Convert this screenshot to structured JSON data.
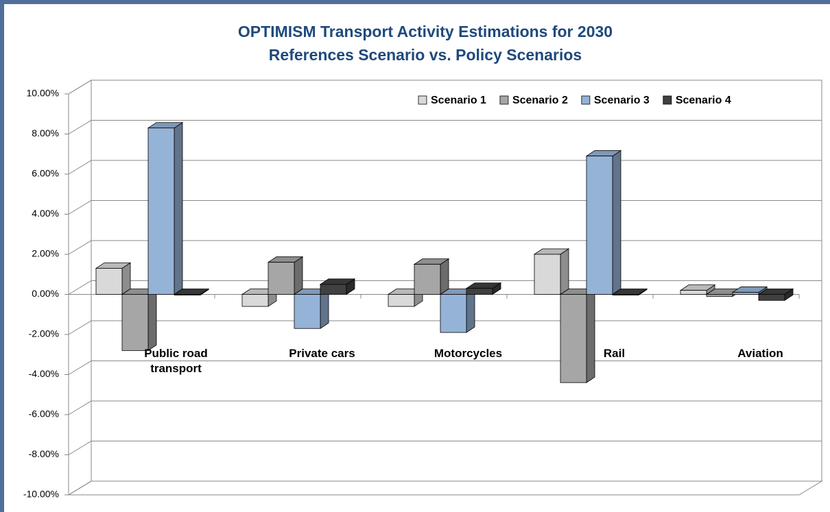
{
  "chart_data": {
    "type": "bar3d",
    "title": "OPTIMISM Transport Activity Estimations for  2030",
    "subtitle": "References Scenario vs. Policy Scenarios",
    "categories": [
      "Public road transport",
      "Private cars",
      "Motorcycles",
      "Rail",
      "Aviation"
    ],
    "series": [
      {
        "name": "Scenario 1",
        "color": "#d9d9d9",
        "values": [
          1.3,
          -0.6,
          -0.6,
          2.0,
          0.2
        ]
      },
      {
        "name": "Scenario 2",
        "color": "#a6a6a6",
        "values": [
          -2.8,
          1.6,
          1.5,
          -4.4,
          -0.1
        ]
      },
      {
        "name": "Scenario 3",
        "color": "#95b3d7",
        "values": [
          8.3,
          -1.7,
          -1.9,
          6.9,
          0.1
        ]
      },
      {
        "name": "Scenario 4",
        "color": "#404040",
        "values": [
          0.0,
          0.5,
          0.3,
          0.0,
          -0.3
        ]
      }
    ],
    "ylim": [
      -10,
      10
    ],
    "yticks": [
      {
        "value": -10,
        "label": "-10.00%"
      },
      {
        "value": -8,
        "label": "-8.00%"
      },
      {
        "value": -6,
        "label": "-6.00%"
      },
      {
        "value": -4,
        "label": "-4.00%"
      },
      {
        "value": -2,
        "label": "-2.00%"
      },
      {
        "value": 0,
        "label": "0.00%"
      },
      {
        "value": 2,
        "label": "2.00%"
      },
      {
        "value": 4,
        "label": "4.00%"
      },
      {
        "value": 6,
        "label": "6.00%"
      },
      {
        "value": 8,
        "label": "8.00%"
      },
      {
        "value": 10,
        "label": "10.00%"
      }
    ],
    "grid": true,
    "legend": "top-right"
  }
}
